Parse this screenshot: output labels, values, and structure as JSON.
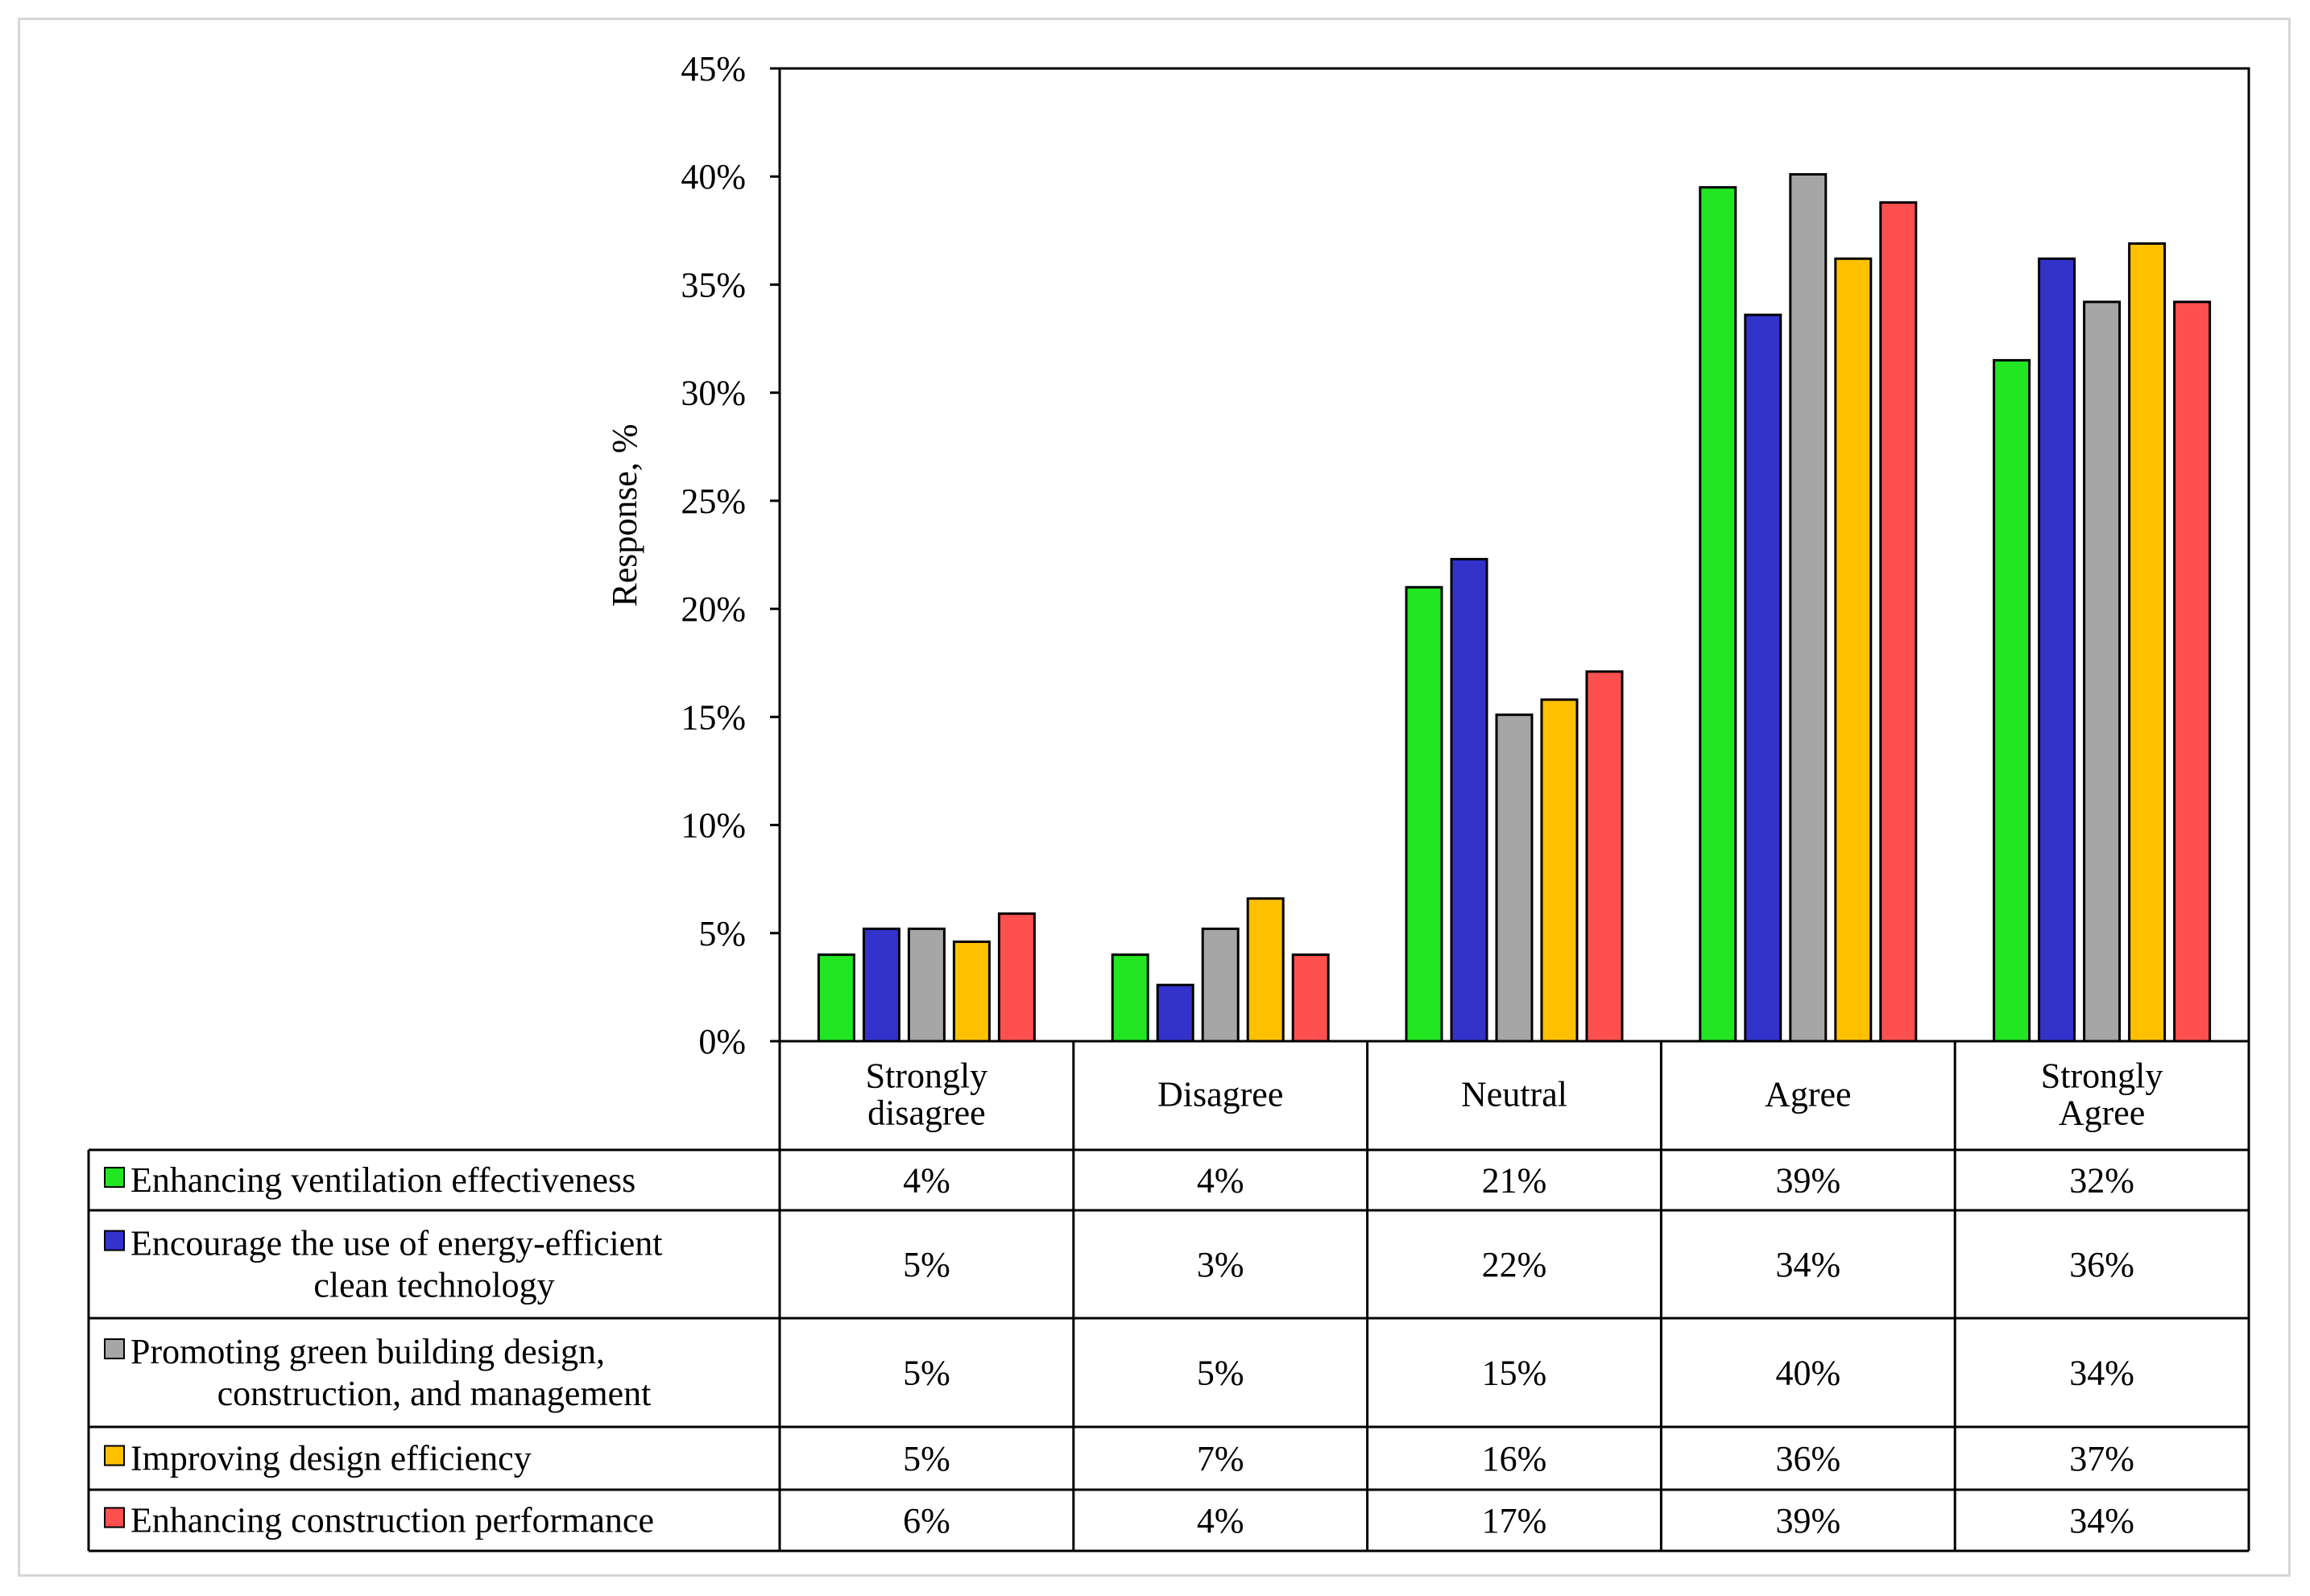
{
  "chart_data": {
    "type": "bar",
    "title": "",
    "xlabel": "",
    "ylabel": "Response, %",
    "ylim": [
      0,
      45
    ],
    "yticks": [
      0,
      5,
      10,
      15,
      20,
      25,
      30,
      35,
      40,
      45
    ],
    "ytick_labels": [
      "0%",
      "5%",
      "10%",
      "15%",
      "20%",
      "25%",
      "30%",
      "35%",
      "40%",
      "45%"
    ],
    "grid": false,
    "legend": "data-table-below",
    "categories": [
      [
        "Strongly",
        "disagree"
      ],
      [
        "Disagree"
      ],
      [
        "Neutral"
      ],
      [
        "Agree"
      ],
      [
        "Strongly",
        "Agree"
      ]
    ],
    "series": [
      {
        "name": "Enhancing ventilation effectiveness",
        "name_lines": [
          "Enhancing ventilation effectiveness"
        ],
        "color": "#22e622",
        "values": [
          4,
          4,
          21,
          39.5,
          31.5
        ],
        "labels": [
          "4%",
          "4%",
          "21%",
          "39%",
          "32%"
        ]
      },
      {
        "name": "Encourage the use of energy-efficient clean technology",
        "name_lines": [
          "Encourage the use of energy-efficient",
          "clean technology"
        ],
        "color": "#3333cc",
        "values": [
          5.2,
          2.6,
          22.3,
          33.6,
          36.2
        ],
        "labels": [
          "5%",
          "3%",
          "22%",
          "34%",
          "36%"
        ]
      },
      {
        "name": "Promoting green building design, construction, and management",
        "name_lines": [
          "Promoting green building design,",
          "construction, and management"
        ],
        "color": "#a6a6a6",
        "values": [
          5.2,
          5.2,
          15.1,
          40.1,
          34.2
        ],
        "labels": [
          "5%",
          "5%",
          "15%",
          "40%",
          "34%"
        ]
      },
      {
        "name": "Improving design efficiency",
        "name_lines": [
          "Improving design efficiency"
        ],
        "color": "#ffc000",
        "values": [
          4.6,
          6.6,
          15.8,
          36.2,
          36.9
        ],
        "labels": [
          "5%",
          "7%",
          "16%",
          "36%",
          "37%"
        ]
      },
      {
        "name": "Enhancing construction performance",
        "name_lines": [
          "Enhancing construction performance"
        ],
        "color": "#ff5050",
        "values": [
          5.9,
          4,
          17.1,
          38.8,
          34.2
        ],
        "labels": [
          "6%",
          "4%",
          "17%",
          "39%",
          "34%"
        ]
      }
    ]
  }
}
